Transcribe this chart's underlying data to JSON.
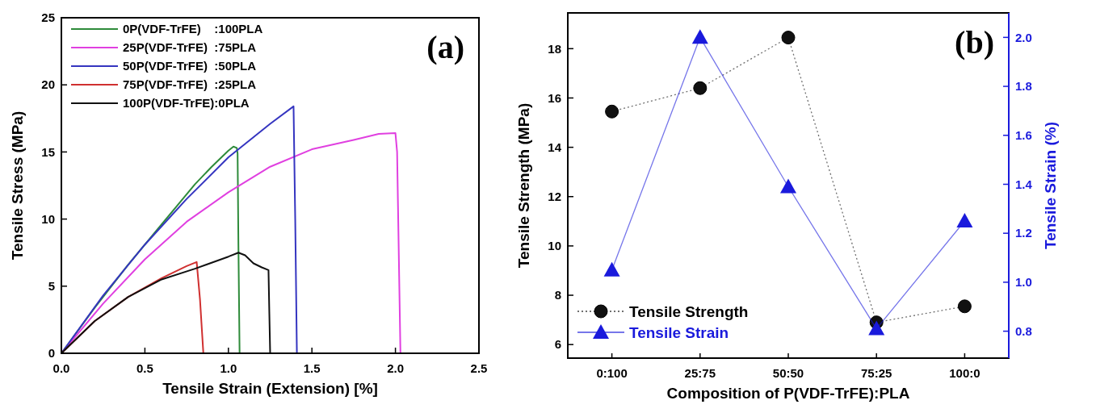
{
  "chart_data": [
    {
      "type": "line",
      "xlabel": "Tensile Strain (Extension) [%]",
      "ylabel": "Tensile Stress (MPa)",
      "xlim": [
        0,
        2.5
      ],
      "ylim": [
        0,
        25
      ],
      "xticks": [
        {
          "value": 0,
          "label": "0.0"
        },
        0.5,
        {
          "value": 1,
          "label": "1.0"
        },
        1.5,
        {
          "value": 2,
          "label": "2.0"
        },
        2.5
      ],
      "yticks": [
        0,
        5,
        10,
        15,
        20,
        25
      ],
      "legend": "top left",
      "grid": false,
      "marker": "none",
      "line_style": "solid",
      "annotations": [
        "(a)"
      ],
      "series": [
        {
          "name": "0P(VDF-TrFE)    :100PLA",
          "color": "#2e8b3a",
          "x": [
            0,
            0.2,
            0.4,
            0.6,
            0.8,
            0.9,
            1.0,
            1.03,
            1.05,
            1.055,
            1.06,
            1.067
          ],
          "values": [
            0,
            3.4,
            6.6,
            9.6,
            12.6,
            13.9,
            15.1,
            15.4,
            15.3,
            14.9,
            8,
            0
          ]
        },
        {
          "name": "25P(VDF-TrFE)  :75PLA",
          "color": "#e040e0",
          "x": [
            0,
            0.25,
            0.5,
            0.75,
            1.0,
            1.25,
            1.5,
            1.75,
            1.9,
            2.0,
            2.01,
            2.03
          ],
          "values": [
            0,
            3.7,
            7.0,
            9.8,
            12.0,
            13.9,
            15.2,
            15.9,
            16.35,
            16.4,
            15,
            0
          ]
        },
        {
          "name": "50P(VDF-TrFE)  :50PLA",
          "color": "#3535c0",
          "x": [
            0,
            0.25,
            0.5,
            0.75,
            1.0,
            1.25,
            1.39,
            1.4,
            1.41
          ],
          "values": [
            0,
            4.3,
            8.1,
            11.5,
            14.6,
            17.1,
            18.4,
            10,
            0
          ]
        },
        {
          "name": "75P(VDF-TrFE)  :25PLA",
          "color": "#d03030",
          "x": [
            0,
            0.2,
            0.4,
            0.6,
            0.75,
            0.81,
            0.83,
            0.85
          ],
          "values": [
            0,
            2.4,
            4.2,
            5.6,
            6.5,
            6.8,
            4,
            0
          ]
        },
        {
          "name": "100P(VDF-TrFE):0PLA",
          "color": "#111111",
          "x": [
            0,
            0.2,
            0.4,
            0.6,
            0.8,
            1.0,
            1.06,
            1.1,
            1.15,
            1.2,
            1.24,
            1.245,
            1.25
          ],
          "values": [
            0,
            2.4,
            4.2,
            5.5,
            6.3,
            7.2,
            7.5,
            7.3,
            6.7,
            6.4,
            6.2,
            3,
            0
          ]
        }
      ]
    },
    {
      "type": "line",
      "xlabel": "Composition of P(VDF-TrFE):PLA",
      "ylabel": "Tensile Strength (MPa)",
      "y2label": "Tensile Strain (%)",
      "categories": [
        "0:100",
        "25:75",
        "50:50",
        "75:25",
        "100:0"
      ],
      "ylim": [
        5.45,
        19.45
      ],
      "yticks": [
        6,
        8,
        10,
        12,
        14,
        16,
        18
      ],
      "y2lim": [
        0.69,
        2.1
      ],
      "y2ticks": [
        0.8,
        {
          "value": 1,
          "label": "1.0"
        },
        1.2,
        1.4,
        1.6,
        1.8,
        {
          "value": 2,
          "label": "2.0"
        }
      ],
      "legend": "bottom left",
      "grid": false,
      "annotations": [
        "(b)"
      ],
      "series": [
        {
          "name": "Tensile Strength",
          "color": "#111111",
          "marker": "circle",
          "line_style": "dotted",
          "values": [
            15.45,
            16.4,
            18.45,
            6.9,
            7.55
          ]
        },
        {
          "name": "Tensile Strain",
          "color": "#1a1adc",
          "marker": "triangle",
          "line_style": "solid",
          "axis": "y2",
          "values": [
            1.05,
            2.0,
            1.39,
            0.81,
            1.25
          ]
        }
      ]
    }
  ]
}
